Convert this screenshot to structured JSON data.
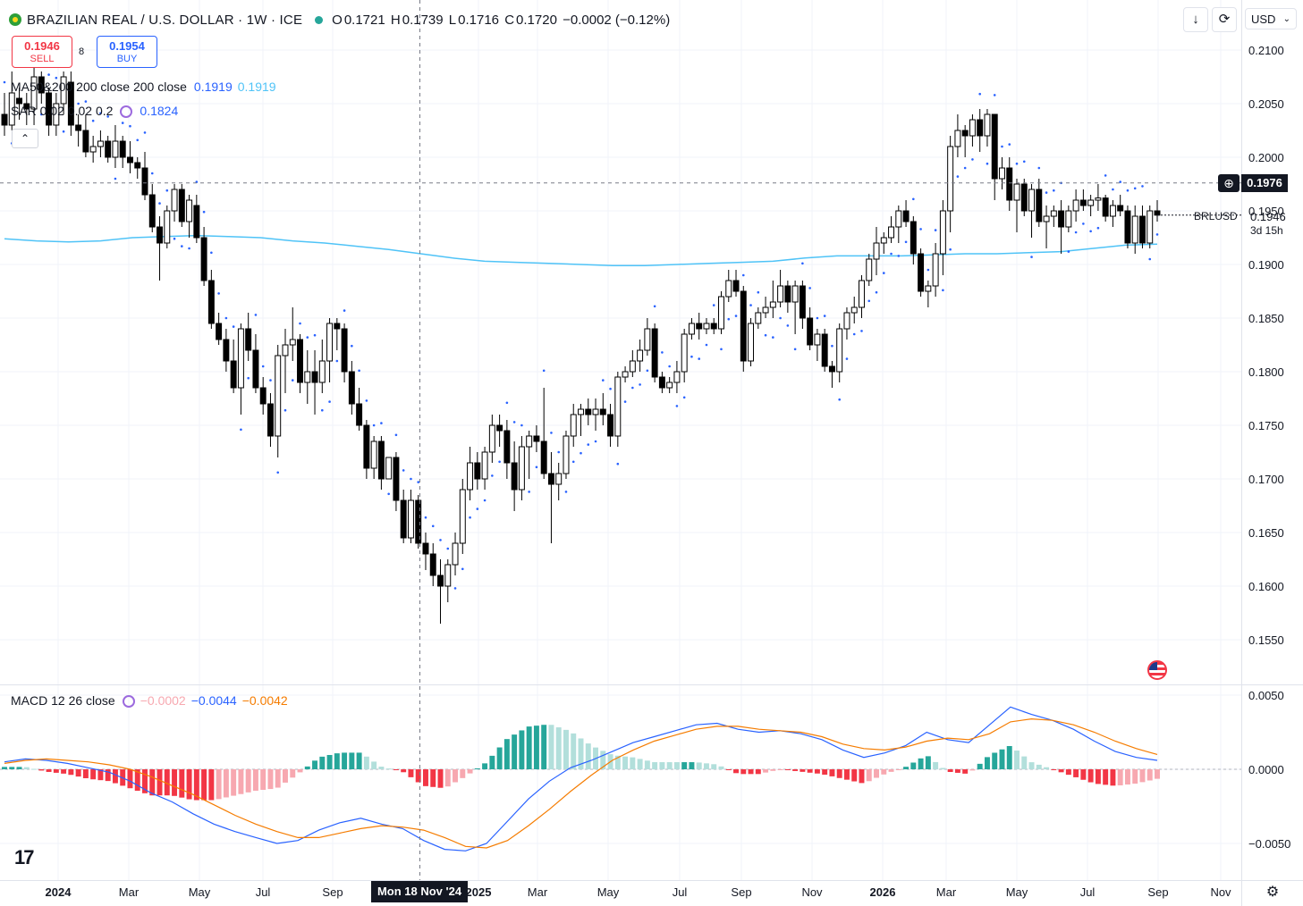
{
  "header": {
    "symbol": "BRAZILIAN REAL / U.S. DOLLAR · 1W · ICE",
    "o_label": "O",
    "o": "0.1721",
    "h_label": "H",
    "h": "0.1739",
    "l_label": "L",
    "l": "0.1716",
    "c_label": "C",
    "c": "0.1720",
    "change": "−0.0002 (−0.12%)"
  },
  "trade": {
    "sell_price": "0.1946",
    "sell_label": "SELL",
    "spread": "8",
    "buy_price": "0.1954",
    "buy_label": "BUY"
  },
  "indicators": {
    "ma_label": "MA50&200 200 close 200 close",
    "ma_v1": "0.1919",
    "ma_v2": "0.1919",
    "sar_label": "SAR 0.02 0.02 0.2",
    "sar_v": "0.1824",
    "macd_label": "MACD 12 26 close",
    "macd_hist": "−0.0002",
    "macd_macd": "−0.0044",
    "macd_signal": "−0.0042"
  },
  "toolbar": {
    "currency": "USD",
    "download_icon": "arrow-down-icon",
    "reset_icon": "refresh-icon"
  },
  "price_axis": {
    "labels": [
      "0.2100",
      "0.2050",
      "0.2000",
      "0.1950",
      "0.1900",
      "0.1850",
      "0.1800",
      "0.1750",
      "0.1700",
      "0.1650",
      "0.1600",
      "0.1550"
    ]
  },
  "macd_axis": {
    "labels": [
      "0.0050",
      "0.0000",
      "−0.0050"
    ]
  },
  "time_axis": {
    "labels": [
      "2024",
      "Mar",
      "May",
      "Jul",
      "Sep",
      "2025",
      "Mar",
      "May",
      "Jul",
      "Sep",
      "Nov",
      "2026",
      "Mar",
      "May",
      "Jul",
      "Sep",
      "Nov"
    ]
  },
  "markers": {
    "symbol_label": "BRLUSD",
    "last_price": "0.1946",
    "countdown": "3d 15h",
    "crosshair_price": "0.1976",
    "crosshair_date": "Mon 18 Nov '24"
  },
  "colors": {
    "up": "#ffffff",
    "down": "#000000",
    "ma": "#4fc3f7",
    "sar": "#2962ff",
    "macd": "#2962ff",
    "signal": "#f57c00",
    "hist_pos": "#26a69a",
    "hist_pos_light": "#b2dfdb",
    "hist_neg": "#f23645",
    "hist_neg_light": "#f7a8b0"
  },
  "chart_data": {
    "type": "candlestick",
    "interval": "1W",
    "price_range": [
      0.152,
      0.213
    ],
    "candles_ohlc": [
      [
        0.204,
        0.206,
        0.202,
        0.203
      ],
      [
        0.203,
        0.208,
        0.2025,
        0.206
      ],
      [
        0.2055,
        0.2065,
        0.2035,
        0.205
      ],
      [
        0.205,
        0.206,
        0.203,
        0.2045
      ],
      [
        0.2045,
        0.2085,
        0.203,
        0.2075
      ],
      [
        0.2075,
        0.208,
        0.205,
        0.206
      ],
      [
        0.206,
        0.2065,
        0.202,
        0.203
      ],
      [
        0.203,
        0.206,
        0.202,
        0.205
      ],
      [
        0.205,
        0.208,
        0.204,
        0.2075
      ],
      [
        0.207,
        0.208,
        0.202,
        0.203
      ],
      [
        0.203,
        0.204,
        0.201,
        0.2025
      ],
      [
        0.2025,
        0.204,
        0.2,
        0.2005
      ],
      [
        0.2005,
        0.202,
        0.1995,
        0.201
      ],
      [
        0.201,
        0.2025,
        0.2,
        0.2015
      ],
      [
        0.2015,
        0.202,
        0.1995,
        0.2
      ],
      [
        0.2,
        0.203,
        0.199,
        0.2015
      ],
      [
        0.2015,
        0.202,
        0.199,
        0.2
      ],
      [
        0.2,
        0.2015,
        0.1985,
        0.1995
      ],
      [
        0.1995,
        0.2,
        0.198,
        0.199
      ],
      [
        0.199,
        0.2005,
        0.196,
        0.1965
      ],
      [
        0.1965,
        0.1975,
        0.193,
        0.1935
      ],
      [
        0.1935,
        0.1945,
        0.1885,
        0.192
      ],
      [
        0.192,
        0.1955,
        0.1915,
        0.195
      ],
      [
        0.195,
        0.1975,
        0.194,
        0.197
      ],
      [
        0.197,
        0.1975,
        0.1935,
        0.194
      ],
      [
        0.194,
        0.1965,
        0.1925,
        0.196
      ],
      [
        0.1955,
        0.1965,
        0.192,
        0.1925
      ],
      [
        0.1925,
        0.1935,
        0.188,
        0.1885
      ],
      [
        0.1885,
        0.1895,
        0.184,
        0.1845
      ],
      [
        0.1845,
        0.1855,
        0.1825,
        0.183
      ],
      [
        0.183,
        0.184,
        0.18,
        0.181
      ],
      [
        0.181,
        0.183,
        0.178,
        0.1785
      ],
      [
        0.1785,
        0.1845,
        0.176,
        0.184
      ],
      [
        0.184,
        0.1855,
        0.181,
        0.182
      ],
      [
        0.182,
        0.1835,
        0.178,
        0.1785
      ],
      [
        0.1785,
        0.1795,
        0.176,
        0.177
      ],
      [
        0.177,
        0.178,
        0.173,
        0.174
      ],
      [
        0.174,
        0.1825,
        0.172,
        0.1815
      ],
      [
        0.1815,
        0.184,
        0.178,
        0.1825
      ],
      [
        0.1825,
        0.186,
        0.181,
        0.183
      ],
      [
        0.183,
        0.1835,
        0.178,
        0.179
      ],
      [
        0.179,
        0.182,
        0.177,
        0.18
      ],
      [
        0.18,
        0.182,
        0.176,
        0.179
      ],
      [
        0.179,
        0.183,
        0.178,
        0.181
      ],
      [
        0.181,
        0.185,
        0.179,
        0.1845
      ],
      [
        0.1845,
        0.185,
        0.182,
        0.184
      ],
      [
        0.184,
        0.1845,
        0.179,
        0.18
      ],
      [
        0.18,
        0.181,
        0.176,
        0.177
      ],
      [
        0.177,
        0.1785,
        0.1745,
        0.175
      ],
      [
        0.175,
        0.1755,
        0.17,
        0.171
      ],
      [
        0.171,
        0.174,
        0.17,
        0.1735
      ],
      [
        0.1735,
        0.174,
        0.169,
        0.17
      ],
      [
        0.17,
        0.172,
        0.17,
        0.172
      ],
      [
        0.172,
        0.1725,
        0.167,
        0.168
      ],
      [
        0.168,
        0.169,
        0.164,
        0.1645
      ],
      [
        0.1645,
        0.169,
        0.164,
        0.168
      ],
      [
        0.168,
        0.1685,
        0.1635,
        0.164
      ],
      [
        0.164,
        0.165,
        0.1615,
        0.163
      ],
      [
        0.163,
        0.164,
        0.16,
        0.161
      ],
      [
        0.161,
        0.1625,
        0.1565,
        0.16
      ],
      [
        0.16,
        0.1625,
        0.1585,
        0.162
      ],
      [
        0.162,
        0.165,
        0.161,
        0.164
      ],
      [
        0.164,
        0.17,
        0.163,
        0.169
      ],
      [
        0.169,
        0.173,
        0.168,
        0.1715
      ],
      [
        0.1715,
        0.1725,
        0.169,
        0.17
      ],
      [
        0.17,
        0.173,
        0.169,
        0.1725
      ],
      [
        0.1725,
        0.176,
        0.1715,
        0.175
      ],
      [
        0.175,
        0.176,
        0.173,
        0.1745
      ],
      [
        0.1745,
        0.1755,
        0.17,
        0.1715
      ],
      [
        0.1715,
        0.1735,
        0.167,
        0.169
      ],
      [
        0.169,
        0.174,
        0.168,
        0.173
      ],
      [
        0.173,
        0.1745,
        0.17,
        0.174
      ],
      [
        0.174,
        0.175,
        0.1725,
        0.1735
      ],
      [
        0.1735,
        0.1785,
        0.17,
        0.1705
      ],
      [
        0.1705,
        0.1725,
        0.164,
        0.1695
      ],
      [
        0.1695,
        0.1715,
        0.168,
        0.1705
      ],
      [
        0.1705,
        0.1745,
        0.17,
        0.174
      ],
      [
        0.174,
        0.177,
        0.173,
        0.176
      ],
      [
        0.176,
        0.177,
        0.174,
        0.1765
      ],
      [
        0.1765,
        0.1775,
        0.175,
        0.176
      ],
      [
        0.176,
        0.1775,
        0.1745,
        0.1765
      ],
      [
        0.1765,
        0.178,
        0.175,
        0.176
      ],
      [
        0.176,
        0.177,
        0.173,
        0.174
      ],
      [
        0.174,
        0.18,
        0.173,
        0.1795
      ],
      [
        0.1795,
        0.1805,
        0.179,
        0.18
      ],
      [
        0.18,
        0.182,
        0.1795,
        0.181
      ],
      [
        0.181,
        0.183,
        0.18,
        0.182
      ],
      [
        0.182,
        0.185,
        0.1815,
        0.184
      ],
      [
        0.184,
        0.1845,
        0.179,
        0.1795
      ],
      [
        0.1795,
        0.18,
        0.178,
        0.1785
      ],
      [
        0.1785,
        0.1795,
        0.178,
        0.179
      ],
      [
        0.179,
        0.181,
        0.178,
        0.18
      ],
      [
        0.18,
        0.184,
        0.179,
        0.1835
      ],
      [
        0.1835,
        0.185,
        0.183,
        0.1845
      ],
      [
        0.1845,
        0.1855,
        0.183,
        0.184
      ],
      [
        0.184,
        0.185,
        0.1835,
        0.1845
      ],
      [
        0.1845,
        0.185,
        0.1835,
        0.184
      ],
      [
        0.184,
        0.1875,
        0.1835,
        0.187
      ],
      [
        0.187,
        0.1895,
        0.1865,
        0.1885
      ],
      [
        0.1885,
        0.1895,
        0.187,
        0.1875
      ],
      [
        0.1875,
        0.188,
        0.18,
        0.181
      ],
      [
        0.181,
        0.185,
        0.1805,
        0.1845
      ],
      [
        0.1845,
        0.186,
        0.184,
        0.1855
      ],
      [
        0.1855,
        0.187,
        0.185,
        0.186
      ],
      [
        0.186,
        0.1885,
        0.185,
        0.1865
      ],
      [
        0.1865,
        0.1895,
        0.186,
        0.188
      ],
      [
        0.188,
        0.1885,
        0.1855,
        0.1865
      ],
      [
        0.1865,
        0.1885,
        0.1835,
        0.188
      ],
      [
        0.188,
        0.1885,
        0.184,
        0.185
      ],
      [
        0.185,
        0.186,
        0.182,
        0.1825
      ],
      [
        0.1825,
        0.184,
        0.181,
        0.1835
      ],
      [
        0.1835,
        0.184,
        0.18,
        0.1805
      ],
      [
        0.1805,
        0.181,
        0.1785,
        0.18
      ],
      [
        0.18,
        0.1845,
        0.179,
        0.184
      ],
      [
        0.184,
        0.186,
        0.183,
        0.1855
      ],
      [
        0.1855,
        0.187,
        0.1845,
        0.186
      ],
      [
        0.186,
        0.189,
        0.185,
        0.1885
      ],
      [
        0.1885,
        0.191,
        0.188,
        0.1905
      ],
      [
        0.1905,
        0.1935,
        0.189,
        0.192
      ],
      [
        0.192,
        0.193,
        0.191,
        0.1925
      ],
      [
        0.1925,
        0.1945,
        0.192,
        0.1935
      ],
      [
        0.1935,
        0.1955,
        0.192,
        0.195
      ],
      [
        0.195,
        0.196,
        0.1935,
        0.194
      ],
      [
        0.194,
        0.1945,
        0.19,
        0.191
      ],
      [
        0.191,
        0.1915,
        0.187,
        0.1875
      ],
      [
        0.1875,
        0.1885,
        0.186,
        0.188
      ],
      [
        0.188,
        0.192,
        0.187,
        0.191
      ],
      [
        0.191,
        0.196,
        0.189,
        0.195
      ],
      [
        0.195,
        0.202,
        0.193,
        0.201
      ],
      [
        0.201,
        0.204,
        0.2,
        0.2025
      ],
      [
        0.2025,
        0.203,
        0.2,
        0.202
      ],
      [
        0.202,
        0.204,
        0.201,
        0.2035
      ],
      [
        0.2035,
        0.2045,
        0.2005,
        0.202
      ],
      [
        0.202,
        0.2045,
        0.201,
        0.204
      ],
      [
        0.204,
        0.204,
        0.196,
        0.198
      ],
      [
        0.198,
        0.2,
        0.197,
        0.199
      ],
      [
        0.199,
        0.2,
        0.195,
        0.196
      ],
      [
        0.196,
        0.198,
        0.193,
        0.1975
      ],
      [
        0.1975,
        0.198,
        0.1945,
        0.195
      ],
      [
        0.195,
        0.1975,
        0.1925,
        0.197
      ],
      [
        0.197,
        0.198,
        0.1935,
        0.194
      ],
      [
        0.194,
        0.1955,
        0.1915,
        0.1945
      ],
      [
        0.1945,
        0.1955,
        0.1935,
        0.195
      ],
      [
        0.195,
        0.196,
        0.191,
        0.1935
      ],
      [
        0.1935,
        0.1955,
        0.193,
        0.195
      ],
      [
        0.195,
        0.197,
        0.194,
        0.196
      ],
      [
        0.196,
        0.197,
        0.195,
        0.1955
      ],
      [
        0.1955,
        0.1965,
        0.1945,
        0.196
      ],
      [
        0.196,
        0.1975,
        0.195,
        0.1962
      ],
      [
        0.1962,
        0.1965,
        0.194,
        0.1945
      ],
      [
        0.1945,
        0.196,
        0.1935,
        0.1955
      ],
      [
        0.1955,
        0.1965,
        0.1945,
        0.195
      ],
      [
        0.195,
        0.1955,
        0.1915,
        0.192
      ],
      [
        0.192,
        0.1955,
        0.191,
        0.1945
      ],
      [
        0.1945,
        0.1955,
        0.1915,
        0.192
      ],
      [
        0.192,
        0.1955,
        0.1915,
        0.195
      ],
      [
        0.195,
        0.196,
        0.194,
        0.1946
      ]
    ],
    "ma200": [
      0.1924,
      0.1922,
      0.1921,
      0.1922,
      0.1925,
      0.1926,
      0.1927,
      0.1926,
      0.1925,
      0.1922,
      0.192,
      0.1917,
      0.1914,
      0.191,
      0.1906,
      0.1903,
      0.1902,
      0.1901,
      0.19,
      0.1899,
      0.1899,
      0.19,
      0.1901,
      0.1902,
      0.1903,
      0.1906,
      0.1908,
      0.1908,
      0.1908,
      0.1909,
      0.191,
      0.191,
      0.1911,
      0.1912,
      0.1915,
      0.1918,
      0.1919
    ],
    "macd_line": [
      0.0005,
      0.0007,
      0.0006,
      0.0004,
      0.0001,
      -0.0002,
      -0.0008,
      -0.0016,
      -0.0022,
      -0.003,
      -0.0037,
      -0.0042,
      -0.0046,
      -0.005,
      -0.0048,
      -0.0041,
      -0.0036,
      -0.0033,
      -0.0037,
      -0.004,
      -0.0048,
      -0.0054,
      -0.0055,
      -0.005,
      -0.0035,
      -0.002,
      -0.0008,
      0.0001,
      0.0006,
      0.0012,
      0.0018,
      0.0022,
      0.0026,
      0.003,
      0.0031,
      0.0027,
      0.0025,
      0.0026,
      0.0024,
      0.002,
      0.0013,
      0.0008,
      0.0011,
      0.0016,
      0.0025,
      0.002,
      0.0018,
      0.003,
      0.0042,
      0.0037,
      0.0033,
      0.0027,
      0.0019,
      0.0012,
      0.0008,
      0.0006
    ],
    "signal_line": [
      0.0004,
      0.0006,
      0.0007,
      0.0006,
      0.0005,
      0.0003,
      0.0,
      -0.0005,
      -0.0011,
      -0.0017,
      -0.0024,
      -0.0031,
      -0.0037,
      -0.0042,
      -0.0046,
      -0.0046,
      -0.0043,
      -0.004,
      -0.0038,
      -0.0039,
      -0.0041,
      -0.0046,
      -0.0052,
      -0.0053,
      -0.0048,
      -0.0038,
      -0.0027,
      -0.0015,
      -0.0004,
      0.0006,
      0.0013,
      0.0019,
      0.0023,
      0.0027,
      0.0029,
      0.0029,
      0.0027,
      0.0026,
      0.0025,
      0.0022,
      0.0017,
      0.0014,
      0.0013,
      0.0015,
      0.0019,
      0.0021,
      0.002,
      0.0024,
      0.0032,
      0.0034,
      0.0033,
      0.003,
      0.0025,
      0.0019,
      0.0014,
      0.001
    ],
    "macd_range": [
      -0.0068,
      0.0058
    ]
  }
}
